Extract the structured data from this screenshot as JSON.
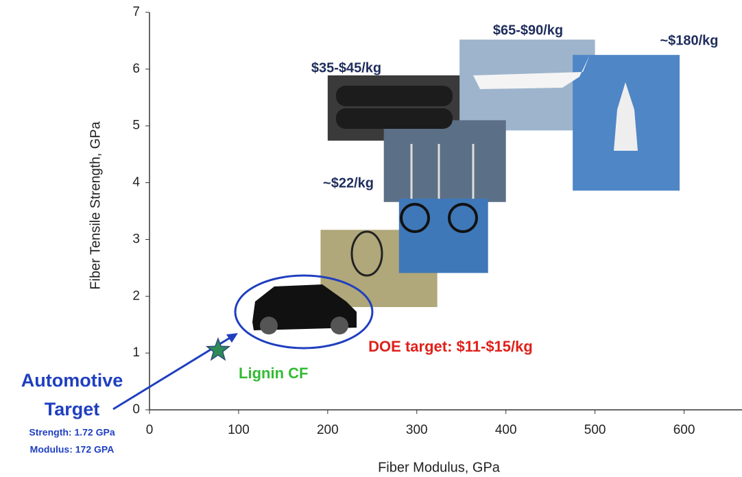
{
  "chart_data": {
    "type": "scatter",
    "x_label": "Fiber Modulus, GPa",
    "y_label": "Fiber Tensile Strength, GPa",
    "xlim": [
      0,
      665
    ],
    "ylim": [
      0,
      7
    ],
    "xticks": [
      0,
      100,
      200,
      300,
      400,
      500,
      600
    ],
    "yticks": [
      0,
      1,
      2,
      3,
      4,
      5,
      6,
      7
    ],
    "series": [
      {
        "name": "Lignin CF",
        "color": "#2e8b57",
        "x": [
          77
        ],
        "values": [
          1.05
        ]
      }
    ],
    "regions": [
      {
        "x": [
          200,
          355
        ],
        "y": [
          4.74,
          5.89
        ],
        "color": "#3a3a3a"
      },
      {
        "x": [
          348,
          500
        ],
        "y": [
          4.92,
          6.52
        ],
        "color": "#9db4cc"
      },
      {
        "x": [
          475,
          595
        ],
        "y": [
          3.86,
          6.25
        ],
        "color": "#4f86c6"
      },
      {
        "x": [
          263,
          400
        ],
        "y": [
          3.66,
          5.1
        ],
        "color": "#5b6f86"
      },
      {
        "x": [
          280,
          380
        ],
        "y": [
          2.41,
          3.72
        ],
        "color": "#3f78b8"
      },
      {
        "x": [
          192,
          323
        ],
        "y": [
          1.81,
          3.17
        ],
        "color": "#b0a77a"
      }
    ],
    "annotations": [
      {
        "text": "$35-$45/kg",
        "color": "#1f2d5c"
      },
      {
        "text": "$65-$90/kg",
        "color": "#1f2d5c"
      },
      {
        "text": "~$180/kg",
        "color": "#1f2d5c"
      },
      {
        "text": "~$22/kg",
        "color": "#1f2d5c"
      },
      {
        "text": "DOE target: $11-$15/kg",
        "color": "#e0201b"
      },
      {
        "text": "Automotive",
        "color": "#1f3fbf"
      },
      {
        "text": "Target",
        "color": "#1f3fbf"
      },
      {
        "text": "Strength: 1.72 GPa",
        "color": "#1f3fbf"
      },
      {
        "text": "Modulus:  172 GPA",
        "color": "#1f3fbf"
      }
    ]
  }
}
